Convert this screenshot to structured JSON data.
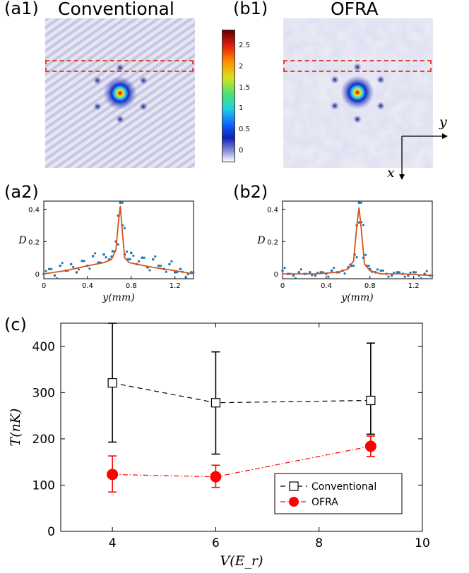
{
  "labels": {
    "a1": "(a1)",
    "b1": "(b1)",
    "a2": "(a2)",
    "b2": "(b2)",
    "c": "(c)",
    "title_a1": "Conventional",
    "title_b1": "OFRA"
  },
  "axes_labels": {
    "x": "x",
    "y": "y"
  },
  "colorbar": {
    "ticks": [
      "0",
      "0.5",
      "1",
      "1.5",
      "2",
      "2.5"
    ],
    "tick_values": [
      0,
      0.5,
      1,
      1.5,
      2,
      2.5
    ],
    "range": [
      -0.25,
      2.9
    ]
  },
  "colors": {
    "conventional": "#000000",
    "ofra": "#ff0000",
    "scatter": "#1f77b4",
    "fit": "#d95319",
    "roi": "#e0443a"
  },
  "chart_data": [
    {
      "id": "a2",
      "type": "line",
      "xlabel": "y(mm)",
      "ylabel": "D",
      "xlim": [
        0,
        1.37
      ],
      "ylim": [
        -0.03,
        0.45
      ],
      "xticks": [
        0,
        0.4,
        0.8,
        1.2
      ],
      "xtick_labels": [
        "0",
        "0.4",
        "0.8",
        "1.2"
      ],
      "yticks": [
        0,
        0.2,
        0.4
      ],
      "ytick_labels": [
        "0",
        "0.2",
        "0.4"
      ],
      "series": [
        {
          "name": "data",
          "kind": "scatter",
          "x": [
            0.0,
            0.05,
            0.1,
            0.15,
            0.2,
            0.25,
            0.3,
            0.35,
            0.4,
            0.45,
            0.5,
            0.55,
            0.6,
            0.63,
            0.66,
            0.68,
            0.7,
            0.72,
            0.74,
            0.77,
            0.8,
            0.85,
            0.9,
            0.95,
            1.0,
            1.05,
            1.1,
            1.15,
            1.2,
            1.25,
            1.3,
            1.35
          ],
          "y": [
            0.0,
            0.03,
            -0.01,
            0.05,
            0.02,
            0.06,
            0.01,
            0.08,
            0.05,
            0.11,
            0.07,
            0.12,
            0.09,
            0.14,
            0.2,
            0.36,
            0.44,
            0.3,
            0.12,
            0.09,
            0.13,
            0.06,
            0.1,
            0.04,
            0.09,
            0.05,
            0.03,
            0.06,
            0.01,
            0.03,
            -0.02,
            0.01
          ]
        },
        {
          "name": "fit",
          "kind": "line",
          "x": [
            0.0,
            0.2,
            0.4,
            0.55,
            0.62,
            0.66,
            0.68,
            0.7,
            0.72,
            0.74,
            0.78,
            0.85,
            1.0,
            1.2,
            1.37
          ],
          "y": [
            0.0,
            0.02,
            0.05,
            0.07,
            0.09,
            0.15,
            0.3,
            0.42,
            0.25,
            0.1,
            0.07,
            0.06,
            0.04,
            0.02,
            0.0
          ]
        }
      ]
    },
    {
      "id": "b2",
      "type": "line",
      "xlabel": "y(mm)",
      "ylabel": "D",
      "xlim": [
        0,
        1.37
      ],
      "ylim": [
        -0.03,
        0.45
      ],
      "xticks": [
        0,
        0.4,
        0.8,
        1.2
      ],
      "xtick_labels": [
        "0",
        "0.4",
        "0.8",
        "1.2"
      ],
      "yticks": [
        0,
        0.2,
        0.4
      ],
      "ytick_labels": [
        "0",
        "0.2",
        "0.4"
      ],
      "series": [
        {
          "name": "data",
          "kind": "scatter",
          "x": [
            0.0,
            0.05,
            0.1,
            0.15,
            0.2,
            0.25,
            0.3,
            0.35,
            0.4,
            0.45,
            0.5,
            0.55,
            0.6,
            0.63,
            0.66,
            0.68,
            0.7,
            0.72,
            0.74,
            0.77,
            0.8,
            0.85,
            0.9,
            0.95,
            1.0,
            1.05,
            1.1,
            1.15,
            1.2,
            1.25,
            1.3,
            1.35
          ],
          "y": [
            0.02,
            0.0,
            -0.01,
            0.01,
            0.0,
            0.01,
            -0.01,
            0.01,
            0.0,
            0.02,
            0.01,
            0.02,
            0.04,
            0.05,
            0.12,
            0.3,
            0.44,
            0.32,
            0.1,
            0.05,
            0.03,
            0.01,
            0.02,
            0.0,
            -0.01,
            0.01,
            0.0,
            -0.01,
            0.01,
            -0.01,
            0.0,
            -0.01
          ]
        },
        {
          "name": "fit",
          "kind": "line",
          "x": [
            0.0,
            0.3,
            0.5,
            0.6,
            0.65,
            0.68,
            0.7,
            0.72,
            0.75,
            0.8,
            0.9,
            1.1,
            1.37
          ],
          "y": [
            0.0,
            0.0,
            0.01,
            0.03,
            0.08,
            0.3,
            0.41,
            0.28,
            0.06,
            0.02,
            0.0,
            0.0,
            -0.01
          ]
        }
      ]
    },
    {
      "id": "c",
      "type": "line",
      "xlabel": "V(E_r)",
      "ylabel": "T(nK)",
      "xlim": [
        3,
        10
      ],
      "ylim": [
        0,
        450
      ],
      "xticks": [
        4,
        6,
        8,
        10
      ],
      "xtick_labels": [
        "4",
        "6",
        "8",
        "10"
      ],
      "yticks": [
        0,
        100,
        200,
        300,
        400
      ],
      "ytick_labels": [
        "0",
        "100",
        "200",
        "300",
        "400"
      ],
      "legend_position": "bottom-right",
      "series": [
        {
          "name": "Conventional",
          "x": [
            4,
            6,
            9
          ],
          "y": [
            321,
            278,
            283
          ],
          "err_low": [
            193,
            167,
            210
          ],
          "err_high": [
            450,
            388,
            407
          ]
        },
        {
          "name": "OFRA",
          "x": [
            4,
            6,
            9
          ],
          "y": [
            123,
            118,
            184
          ],
          "err_low": [
            85,
            95,
            162
          ],
          "err_high": [
            163,
            143,
            206
          ]
        }
      ]
    }
  ]
}
